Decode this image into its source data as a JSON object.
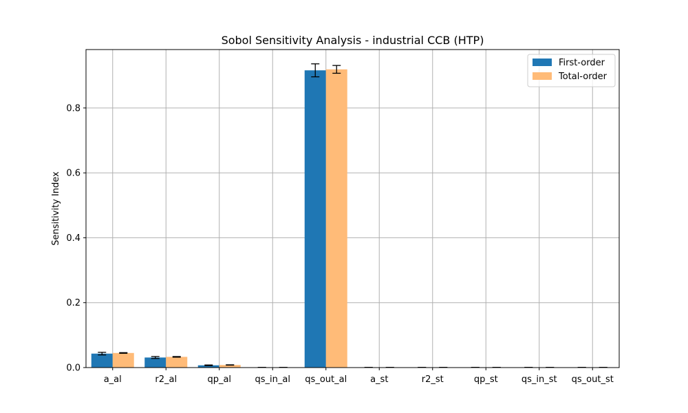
{
  "chart_data": {
    "type": "bar",
    "title": "Sobol Sensitivity Analysis - industrial CCB (HTP)",
    "xlabel": "",
    "ylabel": "Sensitivity Index",
    "ylim": [
      0,
      0.98
    ],
    "yticks": [
      0.0,
      0.2,
      0.4,
      0.6,
      0.8
    ],
    "ytick_labels": [
      "0.0",
      "0.2",
      "0.4",
      "0.6",
      "0.8"
    ],
    "grid": true,
    "legend_position": "top-right",
    "categories": [
      "a_al",
      "r2_al",
      "qp_al",
      "qs_in_al",
      "qs_out_al",
      "a_st",
      "r2_st",
      "qp_st",
      "qs_in_st",
      "qs_out_st"
    ],
    "series": [
      {
        "name": "First-order",
        "color": "#1f77b4",
        "values": [
          0.043,
          0.031,
          0.007,
          0.0005,
          0.916,
          0.0005,
          0.0005,
          0.0005,
          0.0005,
          0.0005
        ],
        "errors": [
          0.004,
          0.003,
          0.001,
          0.0002,
          0.02,
          0.0002,
          0.0002,
          0.0002,
          0.0002,
          0.0002
        ]
      },
      {
        "name": "Total-order",
        "color": "#ffbb78",
        "values": [
          0.045,
          0.033,
          0.008,
          0.0005,
          0.919,
          0.0005,
          0.0005,
          0.0005,
          0.0005,
          0.0005
        ],
        "errors": [
          0.001,
          0.001,
          0.0005,
          0.0002,
          0.012,
          0.0002,
          0.0002,
          0.0002,
          0.0002,
          0.0002
        ]
      }
    ]
  }
}
